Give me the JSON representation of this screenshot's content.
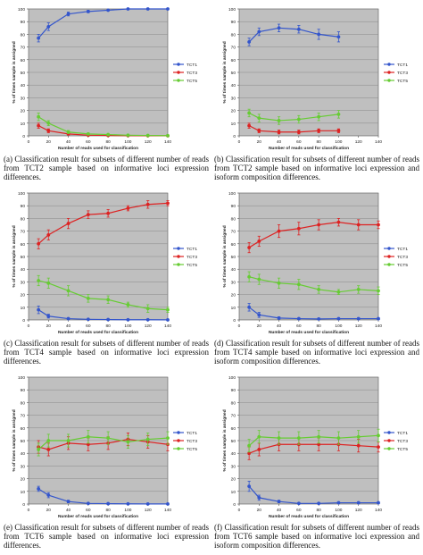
{
  "colors": {
    "plot_background": "#bfbfbf",
    "gridline": "#8a8a8a",
    "TCT1": "#3355cc",
    "TCT3": "#dd2222",
    "TCT5": "#66cc33"
  },
  "chart_data": [
    {
      "type": "line",
      "caption": "(a) Classification result for subsets of different number of reads from TCT2 sample based on informative loci expression differences.",
      "xlabel": "Number of reads used for classification",
      "ylabel": "% of times sample is assigned",
      "xlim": [
        0,
        140
      ],
      "ylim": [
        0,
        100
      ],
      "xticks": [
        0,
        20,
        40,
        60,
        80,
        100,
        120,
        140
      ],
      "yticks": [
        0,
        10,
        20,
        30,
        40,
        50,
        60,
        70,
        80,
        90,
        100
      ],
      "grid": true,
      "legend_position": "right",
      "x": [
        10,
        20,
        40,
        60,
        80,
        100,
        120,
        140
      ],
      "series": [
        {
          "name": "TCT1",
          "values": [
            77,
            86,
            96,
            98,
            99,
            100,
            100,
            100
          ],
          "errors": [
            3,
            3,
            1.5,
            1,
            0.5,
            0.3,
            0.2,
            0.2
          ]
        },
        {
          "name": "TCT3",
          "values": [
            8,
            4,
            1.5,
            0.5,
            0.3,
            0.2,
            0.1,
            0.1
          ],
          "errors": [
            2,
            1.5,
            0.8,
            0.3,
            0.2,
            0.1,
            0.1,
            0.1
          ]
        },
        {
          "name": "TCT5",
          "values": [
            15,
            10,
            3,
            1.5,
            1,
            0.5,
            0.3,
            0.2
          ],
          "errors": [
            3,
            2,
            1.2,
            0.8,
            0.5,
            0.3,
            0.2,
            0.2
          ]
        }
      ]
    },
    {
      "type": "line",
      "caption": "(b) Classification result for subsets of different number of reads from TCT2 sample based on informative loci expression and isoform composition differences.",
      "xlabel": "Number of reads used for classification",
      "ylabel": "% of times sample is assigned",
      "xlim": [
        0,
        140
      ],
      "ylim": [
        0,
        100
      ],
      "xticks": [
        0,
        20,
        40,
        60,
        80,
        100,
        120,
        140
      ],
      "yticks": [
        0,
        10,
        20,
        30,
        40,
        50,
        60,
        70,
        80,
        90,
        100
      ],
      "grid": true,
      "legend_position": "right",
      "x": [
        10,
        20,
        40,
        60,
        80,
        100
      ],
      "series": [
        {
          "name": "TCT1",
          "values": [
            74,
            82,
            85,
            84,
            80,
            78
          ],
          "errors": [
            3,
            3,
            3,
            3,
            4,
            4
          ]
        },
        {
          "name": "TCT3",
          "values": [
            8,
            4,
            3,
            3,
            4,
            4
          ],
          "errors": [
            2,
            1.5,
            1.5,
            1.5,
            1.5,
            1.5
          ]
        },
        {
          "name": "TCT5",
          "values": [
            18,
            14,
            12,
            13,
            15,
            17
          ],
          "errors": [
            3,
            3,
            3,
            3,
            3,
            3
          ]
        }
      ]
    },
    {
      "type": "line",
      "caption": "(c) Classification result for subsets of different number of reads from TCT4 sample based on informative loci expression differences.",
      "xlabel": "Number of reads used for classification",
      "ylabel": "% of times sample is assigned",
      "xlim": [
        0,
        140
      ],
      "ylim": [
        0,
        100
      ],
      "xticks": [
        0,
        20,
        40,
        60,
        80,
        100,
        120,
        140
      ],
      "yticks": [
        0,
        10,
        20,
        30,
        40,
        50,
        60,
        70,
        80,
        90,
        100
      ],
      "grid": true,
      "legend_position": "right",
      "x": [
        10,
        20,
        40,
        60,
        80,
        100,
        120,
        140
      ],
      "series": [
        {
          "name": "TCT1",
          "values": [
            8,
            3,
            1,
            0.5,
            0.3,
            0.2,
            0.2,
            0.1
          ],
          "errors": [
            3,
            1.5,
            0.5,
            0.3,
            0.2,
            0.2,
            0.1,
            0.1
          ]
        },
        {
          "name": "TCT3",
          "values": [
            60,
            67,
            76,
            83,
            84,
            88,
            91,
            92
          ],
          "errors": [
            4,
            4,
            4,
            3,
            3,
            2,
            3,
            2
          ]
        },
        {
          "name": "TCT5",
          "values": [
            31,
            29,
            23,
            17,
            16,
            12,
            9,
            8
          ],
          "errors": [
            4,
            4,
            4,
            3,
            3,
            2,
            3,
            2
          ]
        }
      ]
    },
    {
      "type": "line",
      "caption": "(d) Classification result for subsets of different number of reads from TCT4 sample based on informative loci expression and isoform composition differences.",
      "xlabel": "Number of reads used for classification",
      "ylabel": "% of times sample is assigned",
      "xlim": [
        0,
        140
      ],
      "ylim": [
        0,
        100
      ],
      "xticks": [
        0,
        20,
        40,
        60,
        80,
        100,
        120,
        140
      ],
      "yticks": [
        0,
        10,
        20,
        30,
        40,
        50,
        60,
        70,
        80,
        90,
        100
      ],
      "grid": true,
      "legend_position": "right",
      "x": [
        10,
        20,
        40,
        60,
        80,
        100,
        120,
        140
      ],
      "series": [
        {
          "name": "TCT1",
          "values": [
            10,
            4,
            1.5,
            1,
            0.8,
            1,
            1,
            1
          ],
          "errors": [
            3,
            2,
            1,
            0.5,
            0.5,
            0.5,
            0.5,
            0.5
          ]
        },
        {
          "name": "TCT3",
          "values": [
            57,
            62,
            70,
            72,
            75,
            77,
            75,
            75
          ],
          "errors": [
            4,
            4,
            5,
            5,
            4,
            3,
            4,
            3
          ]
        },
        {
          "name": "TCT5",
          "values": [
            34,
            32,
            29,
            28,
            24,
            22,
            24,
            23
          ],
          "errors": [
            4,
            4,
            4,
            4,
            3,
            2,
            3,
            3
          ]
        }
      ]
    },
    {
      "type": "line",
      "caption": "(e) Classification result for subsets of different number of reads from TCT6 sample based on informative loci expression differences.",
      "xlabel": "Number of reads used for classification",
      "ylabel": "% of times sample is assigned",
      "xlim": [
        0,
        140
      ],
      "ylim": [
        0,
        100
      ],
      "xticks": [
        0,
        20,
        40,
        60,
        80,
        100,
        120,
        140
      ],
      "yticks": [
        0,
        10,
        20,
        30,
        40,
        50,
        60,
        70,
        80,
        90,
        100
      ],
      "grid": true,
      "legend_position": "right",
      "x": [
        10,
        20,
        40,
        60,
        80,
        100,
        120,
        140
      ],
      "series": [
        {
          "name": "TCT1",
          "values": [
            12,
            7,
            2,
            0.5,
            0.3,
            0.2,
            0.1,
            0.1
          ],
          "errors": [
            2,
            2,
            1,
            0.3,
            0.2,
            0.1,
            0.1,
            0.1
          ]
        },
        {
          "name": "TCT3",
          "values": [
            45,
            43,
            48,
            47,
            48,
            51,
            49,
            47
          ],
          "errors": [
            5,
            5,
            5,
            5,
            5,
            5,
            5,
            5
          ]
        },
        {
          "name": "TCT5",
          "values": [
            43,
            50,
            50,
            53,
            52,
            49,
            51,
            52
          ],
          "errors": [
            5,
            5,
            5,
            5,
            5,
            5,
            5,
            5
          ]
        }
      ]
    },
    {
      "type": "line",
      "caption": "(f) Classification result for subsets of different number of reads from TCT6 sample based on informative loci expression and isoform composition differences.",
      "xlabel": "Number of reads used for classification",
      "ylabel": "% of times sample is assigned",
      "xlim": [
        0,
        140
      ],
      "ylim": [
        0,
        100
      ],
      "xticks": [
        0,
        20,
        40,
        60,
        80,
        100,
        120,
        140
      ],
      "yticks": [
        0,
        10,
        20,
        30,
        40,
        50,
        60,
        70,
        80,
        90,
        100
      ],
      "grid": true,
      "legend_position": "right",
      "x": [
        10,
        20,
        40,
        60,
        80,
        100,
        120,
        140
      ],
      "series": [
        {
          "name": "TCT1",
          "values": [
            14,
            5,
            2,
            0.5,
            0.5,
            1,
            1,
            1
          ],
          "errors": [
            4,
            2,
            1,
            0.5,
            0.5,
            0.5,
            0.5,
            0.5
          ]
        },
        {
          "name": "TCT3",
          "values": [
            40,
            43,
            47,
            47,
            47,
            47,
            46,
            45
          ],
          "errors": [
            5,
            5,
            5,
            5,
            5,
            5,
            5,
            4
          ]
        },
        {
          "name": "TCT5",
          "values": [
            46,
            53,
            52,
            52,
            53,
            52,
            53,
            54
          ],
          "errors": [
            5,
            5,
            5,
            5,
            5,
            5,
            5,
            5
          ]
        }
      ]
    }
  ]
}
